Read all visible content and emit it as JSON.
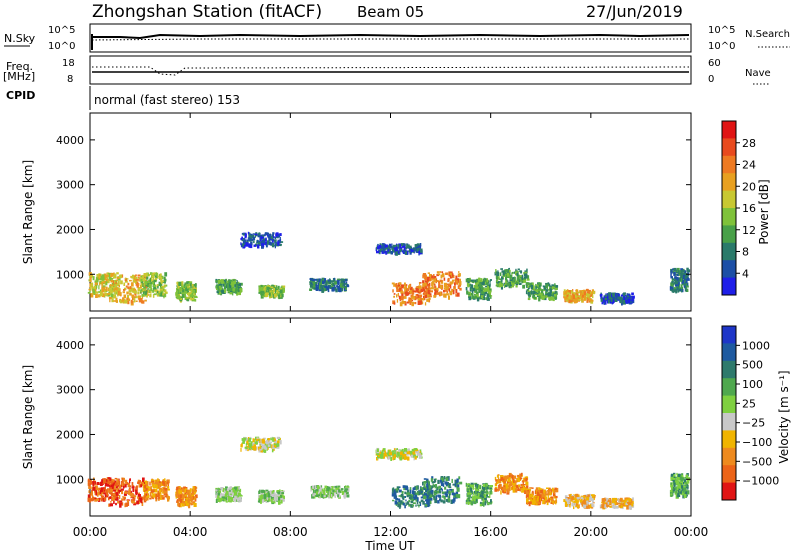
{
  "header": {
    "title": "Zhongshan Station (fitACF)",
    "beam": "Beam 05",
    "date": "27/Jun/2019"
  },
  "panel_labels": {
    "nsky": "N.Sky",
    "nsky_tick_top": "10^5",
    "nsky_tick_bottom": "10^0",
    "nsearch": "N.Search",
    "nsearch_tick_top": "10^5",
    "nsearch_tick_bottom": "10^0",
    "freq": "Freq.",
    "freq_unit": "[MHz]",
    "freq_tick_top": "18",
    "freq_tick_bottom": "8",
    "nave": "Nave",
    "nave_tick_top": "60",
    "nave_tick_bottom": "0",
    "cpid": "CPID",
    "cpid_text": "normal (fast stereo) 153"
  },
  "chart_data": [
    {
      "type": "heatmap",
      "name": "power",
      "ylabel": "Slant Range [km]",
      "yticks": [
        "1000",
        "2000",
        "3000",
        "4000"
      ],
      "ylim": [
        180,
        4600
      ],
      "colorbar_label": "Power [dB]",
      "colorbar_ticks": [
        "4",
        "8",
        "12",
        "16",
        "20",
        "24",
        "28"
      ],
      "colorscale": [
        "#1f1fe8",
        "#1c4fa6",
        "#2a7a6a",
        "#48a048",
        "#7fc23a",
        "#c8c832",
        "#e8a020",
        "#ee7a22",
        "#e84a1e",
        "#e01414"
      ],
      "x_hours": [
        0,
        24
      ],
      "patches": [
        {
          "t": 0.5,
          "r": 800,
          "w": 1.2,
          "h": 500,
          "v": 5
        },
        {
          "t": 1.5,
          "r": 700,
          "w": 1.5,
          "h": 600,
          "v": 6
        },
        {
          "t": 2.5,
          "r": 800,
          "w": 1.0,
          "h": 500,
          "v": 4
        },
        {
          "t": 3.8,
          "r": 650,
          "w": 0.8,
          "h": 400,
          "v": 4
        },
        {
          "t": 5.5,
          "r": 750,
          "w": 1.0,
          "h": 300,
          "v": 3
        },
        {
          "t": 6.8,
          "r": 1800,
          "w": 1.6,
          "h": 300,
          "v": 1
        },
        {
          "t": 7.2,
          "r": 650,
          "w": 1.0,
          "h": 250,
          "v": 4
        },
        {
          "t": 9.5,
          "r": 800,
          "w": 1.5,
          "h": 250,
          "v": 2
        },
        {
          "t": 12.3,
          "r": 1600,
          "w": 1.8,
          "h": 200,
          "v": 1
        },
        {
          "t": 12.8,
          "r": 600,
          "w": 1.5,
          "h": 450,
          "v": 7
        },
        {
          "t": 14.0,
          "r": 800,
          "w": 1.5,
          "h": 550,
          "v": 7
        },
        {
          "t": 15.5,
          "r": 700,
          "w": 1.0,
          "h": 450,
          "v": 3
        },
        {
          "t": 16.8,
          "r": 950,
          "w": 1.3,
          "h": 400,
          "v": 3
        },
        {
          "t": 18.0,
          "r": 650,
          "w": 1.2,
          "h": 350,
          "v": 3
        },
        {
          "t": 19.5,
          "r": 550,
          "w": 1.2,
          "h": 250,
          "v": 6
        },
        {
          "t": 21.0,
          "r": 500,
          "w": 1.3,
          "h": 200,
          "v": 1
        },
        {
          "t": 23.5,
          "r": 900,
          "w": 0.7,
          "h": 500,
          "v": 2
        }
      ]
    },
    {
      "type": "heatmap",
      "name": "velocity",
      "ylabel": "Slant Range [km]",
      "yticks": [
        "1000",
        "2000",
        "3000",
        "4000"
      ],
      "ylim": [
        180,
        4600
      ],
      "colorbar_label": "Velocity [m s⁻¹]",
      "colorbar_ticks": [
        "1000",
        "500",
        "100",
        "25",
        "−25",
        "−100",
        "−500",
        "−1000"
      ],
      "colorscale": [
        "#1e36c8",
        "#1e5aa0",
        "#2e7a6c",
        "#4fa84e",
        "#7fd040",
        "#c8c8c8",
        "#f0b400",
        "#ee8a1e",
        "#ec6418",
        "#e01414"
      ],
      "x_hours": [
        0,
        24
      ],
      "patches": [
        {
          "t": 0.5,
          "r": 800,
          "w": 1.2,
          "h": 500,
          "v": 8
        },
        {
          "t": 1.5,
          "r": 750,
          "w": 1.6,
          "h": 600,
          "v": 8
        },
        {
          "t": 2.6,
          "r": 800,
          "w": 1.0,
          "h": 450,
          "v": 7
        },
        {
          "t": 3.8,
          "r": 650,
          "w": 0.8,
          "h": 400,
          "v": 7
        },
        {
          "t": 5.5,
          "r": 700,
          "w": 1.0,
          "h": 300,
          "v": 4
        },
        {
          "t": 6.8,
          "r": 1800,
          "w": 1.6,
          "h": 300,
          "v": 5
        },
        {
          "t": 7.2,
          "r": 650,
          "w": 1.0,
          "h": 250,
          "v": 4
        },
        {
          "t": 9.5,
          "r": 750,
          "w": 1.5,
          "h": 250,
          "v": 4
        },
        {
          "t": 12.3,
          "r": 1600,
          "w": 1.8,
          "h": 200,
          "v": 5
        },
        {
          "t": 12.8,
          "r": 650,
          "w": 1.5,
          "h": 450,
          "v": 2
        },
        {
          "t": 14.0,
          "r": 800,
          "w": 1.5,
          "h": 550,
          "v": 2
        },
        {
          "t": 15.5,
          "r": 700,
          "w": 1.0,
          "h": 450,
          "v": 3
        },
        {
          "t": 16.8,
          "r": 950,
          "w": 1.3,
          "h": 400,
          "v": 7
        },
        {
          "t": 18.0,
          "r": 650,
          "w": 1.2,
          "h": 350,
          "v": 7
        },
        {
          "t": 19.5,
          "r": 550,
          "w": 1.2,
          "h": 250,
          "v": 6
        },
        {
          "t": 21.0,
          "r": 500,
          "w": 1.3,
          "h": 200,
          "v": 6
        },
        {
          "t": 23.5,
          "r": 900,
          "w": 0.7,
          "h": 500,
          "v": 3
        }
      ]
    }
  ],
  "xaxis": {
    "ticks": [
      "00:00",
      "04:00",
      "08:00",
      "12:00",
      "16:00",
      "20:00",
      "00:00"
    ],
    "label": "Time UT"
  }
}
